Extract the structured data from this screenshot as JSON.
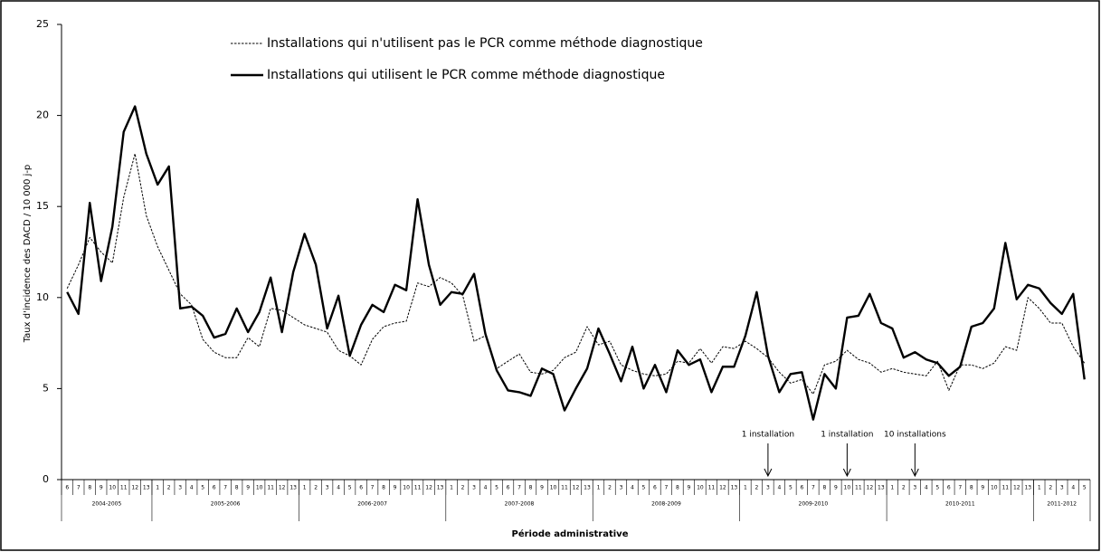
{
  "chart_data": {
    "type": "line",
    "y_label": "Taux d'incidence des DACD / 10 000 j-p",
    "x_label": "Période administrative",
    "groups": [
      {
        "label": "2004-2005",
        "periods": [
          "6",
          "7",
          "8",
          "9",
          "10",
          "11",
          "12",
          "13"
        ]
      },
      {
        "label": "2005-2006",
        "periods": [
          "1",
          "2",
          "3",
          "4",
          "5",
          "6",
          "7",
          "8",
          "9",
          "10",
          "11",
          "12",
          "13"
        ]
      },
      {
        "label": "2006-2007",
        "periods": [
          "1",
          "2",
          "3",
          "4",
          "5",
          "6",
          "7",
          "8",
          "9",
          "10",
          "11",
          "12",
          "13"
        ]
      },
      {
        "label": "2007-2008",
        "periods": [
          "1",
          "2",
          "3",
          "4",
          "5",
          "6",
          "7",
          "8",
          "9",
          "10",
          "11",
          "12",
          "13"
        ]
      },
      {
        "label": "2008-2009",
        "periods": [
          "1",
          "2",
          "3",
          "4",
          "5",
          "6",
          "7",
          "8",
          "9",
          "10",
          "11",
          "12",
          "13"
        ]
      },
      {
        "label": "2009-2010",
        "periods": [
          "1",
          "2",
          "3",
          "4",
          "5",
          "6",
          "7",
          "8",
          "9",
          "10",
          "11",
          "12",
          "13"
        ]
      },
      {
        "label": "2010-2011",
        "periods": [
          "1",
          "2",
          "3",
          "4",
          "5",
          "6",
          "7",
          "8",
          "9",
          "10",
          "11",
          "12",
          "13"
        ]
      },
      {
        "label": "2011-2012",
        "periods": [
          "1",
          "2",
          "3",
          "4",
          "5"
        ]
      }
    ],
    "ylim": [
      0,
      25
    ],
    "yticks": [
      0,
      5,
      10,
      15,
      20,
      25
    ],
    "grid": false,
    "legend_position": "top",
    "series": [
      {
        "name": "Installations qui n'utilisent pas le PCR comme méthode diagnostique",
        "color": "#000000",
        "line_style": "dashed",
        "values": [
          10.5,
          11.8,
          13.3,
          12.5,
          11.9,
          15.5,
          17.9,
          14.5,
          12.8,
          11.5,
          10.2,
          9.6,
          7.7,
          7.0,
          6.7,
          6.7,
          7.8,
          7.3,
          9.4,
          9.3,
          8.9,
          8.5,
          8.3,
          8.1,
          7.1,
          6.8,
          6.3,
          7.7,
          8.4,
          8.6,
          8.7,
          10.8,
          10.6,
          11.1,
          10.8,
          10.1,
          7.6,
          7.9,
          6.1,
          6.5,
          6.9,
          5.9,
          5.8,
          6.0,
          6.7,
          7.0,
          8.4,
          7.4,
          7.6,
          6.3,
          6.0,
          5.8,
          5.7,
          5.8,
          6.5,
          6.4,
          7.2,
          6.4,
          7.3,
          7.2,
          7.6,
          7.2,
          6.7,
          5.9,
          5.3,
          5.5,
          4.7,
          6.3,
          6.5,
          7.1,
          6.6,
          6.4,
          5.9,
          6.1,
          5.9,
          5.8,
          5.7,
          6.5,
          4.9,
          6.3,
          6.3,
          6.1,
          6.4,
          7.3,
          7.1,
          10.0,
          9.4,
          8.6,
          8.6,
          7.3,
          6.4
        ]
      },
      {
        "name": "Installations qui utilisent  le PCR comme méthode diagnostique",
        "color": "#000000",
        "line_style": "solid",
        "values": [
          10.3,
          9.1,
          15.2,
          10.9,
          13.9,
          19.1,
          20.5,
          17.9,
          16.2,
          17.2,
          9.4,
          9.5,
          9.0,
          7.8,
          8.0,
          9.4,
          8.1,
          9.2,
          11.1,
          8.1,
          11.4,
          13.5,
          11.8,
          8.3,
          10.1,
          6.8,
          8.5,
          9.6,
          9.2,
          10.7,
          10.4,
          15.4,
          11.8,
          9.6,
          10.3,
          10.2,
          11.3,
          8.0,
          6.0,
          4.9,
          4.8,
          4.6,
          6.1,
          5.8,
          3.8,
          5.0,
          6.1,
          8.3,
          6.9,
          5.4,
          7.3,
          5.0,
          6.3,
          4.8,
          7.1,
          6.3,
          6.6,
          4.8,
          6.2,
          6.2,
          7.9,
          10.3,
          6.8,
          4.8,
          5.8,
          5.9,
          3.3,
          5.8,
          5.0,
          8.9,
          9.0,
          10.2,
          8.6,
          8.3,
          6.7,
          7.0,
          6.6,
          6.4,
          5.7,
          6.2,
          8.4,
          8.6,
          9.4,
          13.0,
          9.9,
          10.7,
          10.5,
          9.7,
          9.1,
          10.2,
          5.5
        ]
      }
    ],
    "annotations": [
      {
        "text": "1 installation",
        "group": "2009-2010",
        "period": "3"
      },
      {
        "text": "1 installation",
        "group": "2009-2010",
        "period": "10"
      },
      {
        "text": "10 installations",
        "group": "2010-2011",
        "period": "3"
      }
    ]
  }
}
